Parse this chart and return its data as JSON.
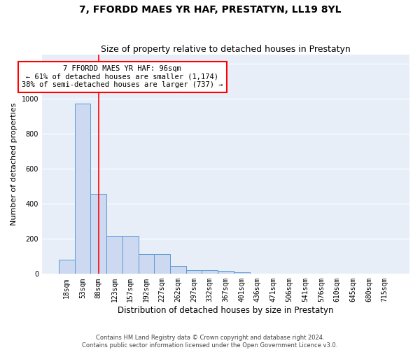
{
  "title": "7, FFORDD MAES YR HAF, PRESTATYN, LL19 8YL",
  "subtitle": "Size of property relative to detached houses in Prestatyn",
  "xlabel": "Distribution of detached houses by size in Prestatyn",
  "ylabel": "Number of detached properties",
  "categories": [
    "18sqm",
    "53sqm",
    "88sqm",
    "123sqm",
    "157sqm",
    "192sqm",
    "227sqm",
    "262sqm",
    "297sqm",
    "332sqm",
    "367sqm",
    "401sqm",
    "436sqm",
    "471sqm",
    "506sqm",
    "541sqm",
    "576sqm",
    "610sqm",
    "645sqm",
    "680sqm",
    "715sqm"
  ],
  "bar_values": [
    80,
    970,
    455,
    215,
    215,
    115,
    115,
    47,
    22,
    22,
    17,
    10,
    0,
    0,
    0,
    0,
    0,
    0,
    0,
    0,
    0
  ],
  "bar_color": "#ccd9f0",
  "bar_edge_color": "#5b9bd5",
  "red_line_x": 2,
  "annotation_text": "7 FFORDD MAES YR HAF: 96sqm\n← 61% of detached houses are smaller (1,174)\n38% of semi-detached houses are larger (737) →",
  "annotation_box_color": "white",
  "annotation_box_edge": "red",
  "ylim": [
    0,
    1250
  ],
  "yticks": [
    0,
    200,
    400,
    600,
    800,
    1000,
    1200
  ],
  "background_color": "#e8eef8",
  "grid_color": "white",
  "footer": "Contains HM Land Registry data © Crown copyright and database right 2024.\nContains public sector information licensed under the Open Government Licence v3.0.",
  "title_fontsize": 10,
  "subtitle_fontsize": 9,
  "xlabel_fontsize": 8.5,
  "ylabel_fontsize": 8,
  "tick_fontsize": 7,
  "footer_fontsize": 6,
  "annot_fontsize": 7.5
}
